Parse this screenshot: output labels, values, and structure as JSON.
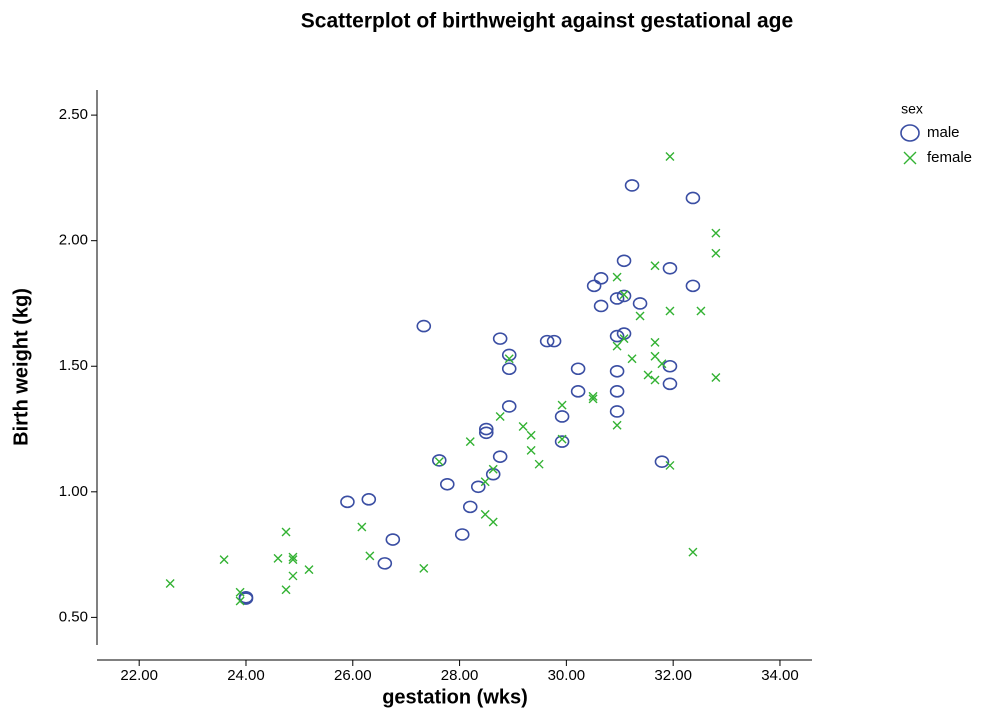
{
  "chart_data": {
    "type": "scatter",
    "title": "Scatterplot of birthweight against gestational age",
    "x_label": "gestation (wks)",
    "y_label": "Birth weight (kg)",
    "legend_title": "sex",
    "legend_position": "right",
    "xlim": [
      21.21,
      34.6
    ],
    "ylim": [
      0.39,
      2.6
    ],
    "xticks": [
      {
        "value": 22,
        "label": "22.00"
      },
      {
        "value": 24,
        "label": "24.00"
      },
      {
        "value": 26,
        "label": "26.00"
      },
      {
        "value": 28,
        "label": "28.00"
      },
      {
        "value": 30,
        "label": "30.00"
      },
      {
        "value": 32,
        "label": "32.00"
      },
      {
        "value": 34,
        "label": "34.00"
      }
    ],
    "yticks": [
      {
        "value": 0.5,
        "label": "0.50"
      },
      {
        "value": 1,
        "label": "1.00"
      },
      {
        "value": 1.5,
        "label": "1.50"
      },
      {
        "value": 2,
        "label": "2.00"
      },
      {
        "value": 2.5,
        "label": "2.50"
      }
    ],
    "grid": false,
    "series": [
      {
        "name": "male",
        "color": "#3a4ea3",
        "marker": "circle",
        "x": [
          24.0,
          24.0,
          25.9,
          26.3,
          26.75,
          26.6,
          27.33,
          27.62,
          27.77,
          28.05,
          28.2,
          28.35,
          28.5,
          28.5,
          28.63,
          28.76,
          28.76,
          28.93,
          28.93,
          28.93,
          29.64,
          29.77,
          29.92,
          29.92,
          30.22,
          30.22,
          30.52,
          30.65,
          30.65,
          30.95,
          30.95,
          30.95,
          30.95,
          30.95,
          31.08,
          31.08,
          31.08,
          31.23,
          31.38,
          31.79,
          31.94,
          31.94,
          31.94,
          32.37,
          32.37
        ],
        "y": [
          0.58,
          0.575,
          0.96,
          0.97,
          0.81,
          0.715,
          1.66,
          1.125,
          1.03,
          0.83,
          0.94,
          1.02,
          1.25,
          1.235,
          1.07,
          1.14,
          1.61,
          1.545,
          1.49,
          1.34,
          1.6,
          1.6,
          1.3,
          1.2,
          1.49,
          1.4,
          1.82,
          1.85,
          1.74,
          1.77,
          1.62,
          1.48,
          1.4,
          1.32,
          1.92,
          1.78,
          1.63,
          2.22,
          1.75,
          1.12,
          1.89,
          1.5,
          1.43,
          2.17,
          1.82
        ]
      },
      {
        "name": "female",
        "color": "#33b233",
        "marker": "x",
        "x": [
          22.58,
          23.59,
          23.89,
          23.89,
          24.6,
          24.75,
          24.75,
          24.88,
          24.88,
          24.88,
          25.18,
          26.17,
          26.32,
          27.33,
          27.62,
          28.2,
          28.48,
          28.48,
          28.63,
          28.63,
          28.76,
          28.93,
          29.19,
          29.34,
          29.34,
          29.49,
          29.92,
          29.92,
          30.5,
          30.5,
          30.95,
          30.95,
          30.95,
          31.08,
          31.08,
          31.23,
          31.38,
          31.53,
          31.66,
          31.66,
          31.66,
          31.66,
          31.79,
          31.94,
          31.94,
          31.94,
          32.37,
          32.52,
          32.8,
          32.8,
          32.8
        ],
        "y": [
          0.635,
          0.73,
          0.6,
          0.565,
          0.735,
          0.84,
          0.61,
          0.74,
          0.73,
          0.665,
          0.69,
          0.86,
          0.745,
          0.695,
          1.12,
          1.2,
          1.04,
          0.91,
          1.09,
          0.88,
          1.3,
          1.53,
          1.26,
          1.225,
          1.165,
          1.11,
          1.345,
          1.21,
          1.38,
          1.37,
          1.855,
          1.58,
          1.265,
          1.785,
          1.61,
          1.53,
          1.7,
          1.465,
          1.9,
          1.595,
          1.54,
          1.445,
          1.51,
          2.335,
          1.72,
          1.105,
          0.76,
          1.72,
          2.03,
          1.95,
          1.455
        ]
      }
    ]
  }
}
